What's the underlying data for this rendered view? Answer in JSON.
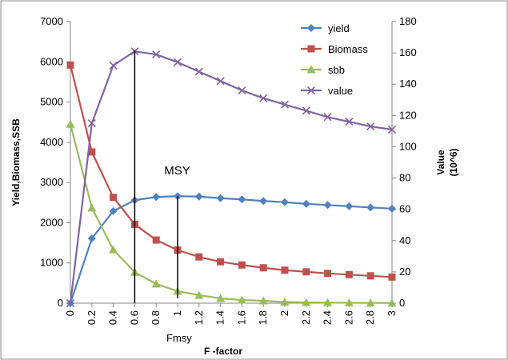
{
  "chart_data": {
    "type": "line",
    "title": "",
    "xlabel": "F -factor",
    "ylabel_left": "Yield,Biomass,SSB",
    "ylabel_right": "Value\n(10^6)",
    "x": [
      0,
      0.2,
      0.4,
      0.6,
      0.8,
      1,
      1.2,
      1.4,
      1.6,
      1.8,
      2,
      2.2,
      2.4,
      2.6,
      2.8,
      3
    ],
    "x_tick_labels": [
      "0",
      "0.2",
      "0.4",
      "0.6",
      "0.8",
      "1",
      "1.2",
      "1.4",
      "1.6",
      "1.8",
      "2",
      "2.2",
      "2.4",
      "2.6",
      "2.8",
      "3"
    ],
    "y_left_ticks": [
      "0",
      "1000",
      "2000",
      "3000",
      "4000",
      "5000",
      "6000",
      "7000"
    ],
    "y_right_ticks": [
      "0",
      "20",
      "40",
      "60",
      "80",
      "100",
      "120",
      "140",
      "160",
      "180"
    ],
    "xlim": [
      0,
      3
    ],
    "ylim_left": [
      0,
      7000
    ],
    "ylim_right": [
      0,
      180
    ],
    "grid": false,
    "legend_position": "top-right",
    "series": [
      {
        "name": "yield",
        "axis": "left",
        "marker": "diamond",
        "color": "#4F81BD",
        "values": [
          0,
          1610,
          2290,
          2560,
          2640,
          2660,
          2650,
          2610,
          2580,
          2540,
          2510,
          2470,
          2440,
          2410,
          2380,
          2350
        ]
      },
      {
        "name": "Biomass",
        "axis": "left",
        "marker": "square",
        "color": "#C0504D",
        "values": [
          5920,
          3760,
          2630,
          1960,
          1570,
          1320,
          1150,
          1030,
          950,
          880,
          820,
          780,
          740,
          710,
          680,
          650
        ]
      },
      {
        "name": "sbb",
        "axis": "left",
        "marker": "triangle",
        "color": "#9BBB59",
        "values": [
          4450,
          2370,
          1330,
          770,
          480,
          300,
          200,
          120,
          80,
          60,
          30,
          20,
          15,
          10,
          8,
          5
        ]
      },
      {
        "name": "value",
        "axis": "right",
        "marker": "x",
        "color": "#8064A2",
        "values": [
          0,
          115,
          152,
          161,
          159,
          154,
          148,
          142,
          136,
          131,
          127,
          123,
          119,
          116,
          113,
          111
        ]
      }
    ],
    "annotations": [
      {
        "text": "MSY",
        "x": 0.95,
        "y_left": 3300
      },
      {
        "text": "Fmsy",
        "x": 1.0,
        "y_left": -950
      }
    ],
    "markers": [
      {
        "x": 0.6,
        "from_y_left": 0,
        "to_y_left": 6280
      },
      {
        "x": 1.0,
        "from_y_left": 120,
        "to_y_left": 2660
      }
    ]
  }
}
